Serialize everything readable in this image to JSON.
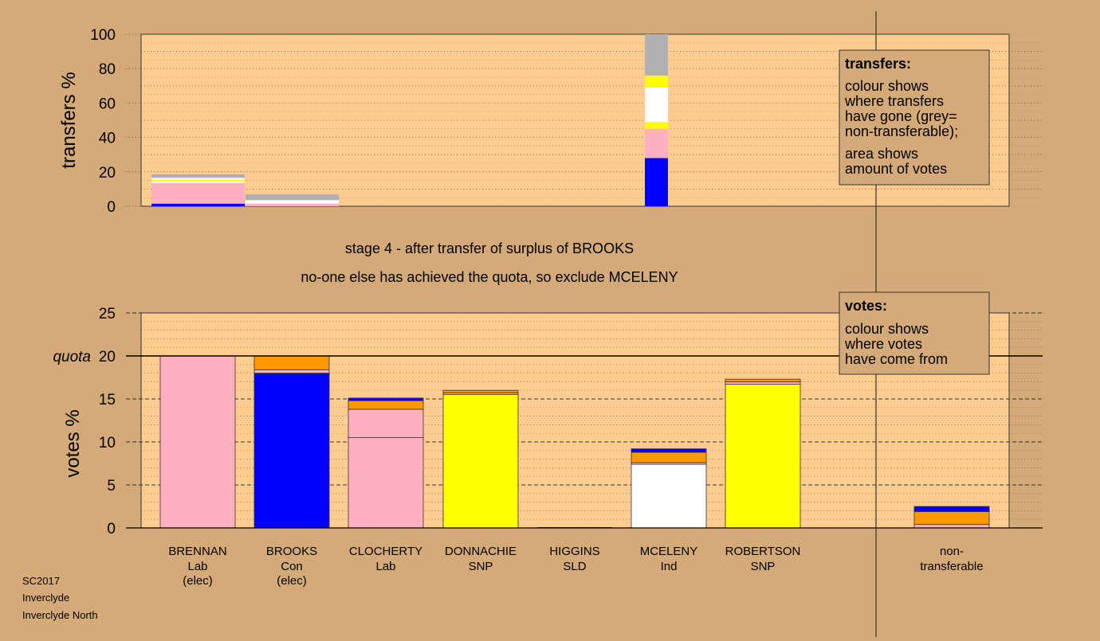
{
  "colors": {
    "page_bg": "#d4aa78",
    "plot_bg": "#ffcc90",
    "Lab": "#ffb0c0",
    "Con": "#0000ff",
    "SNP": "#ffff00",
    "Ind": "#ffffff",
    "SLD": "#ff9900",
    "transfer": "#ff9900",
    "nontransferable": "#b0b0b0"
  },
  "legend_transfers": {
    "title": "transfers:",
    "line1": "colour shows",
    "line2": "where transfers",
    "line3": "have gone (grey=",
    "line4": "non-transferable);",
    "line5": "area shows",
    "line6": "amount of votes"
  },
  "legend_votes": {
    "title": "votes:",
    "line1": "colour shows",
    "line2": "where votes",
    "line3": "have come from"
  },
  "stage_text": {
    "line1": "stage 4 - after transfer of surplus of BROOKS",
    "line2": "no-one else has achieved the quota, so exclude MCELENY"
  },
  "footer": {
    "line1": "SC2017",
    "line2": "Inverclyde",
    "line3": "Inverclyde North"
  },
  "quota_label": "quota",
  "chart_data": [
    {
      "type": "bar",
      "title": "transfers",
      "ylabel": "transfers %",
      "ylim": [
        0,
        100
      ],
      "yticks": [
        0,
        20,
        40,
        60,
        80,
        100
      ],
      "categories": [
        "BRENNAN",
        "BROOKS",
        "CLOCHERTY",
        "DONNACHIE",
        "HIGGINS",
        "MCELENY",
        "ROBERTSON"
      ],
      "bars": [
        {
          "slot": 0,
          "segments": [
            {
              "party": "Con",
              "value": 1.5
            },
            {
              "party": "Lab",
              "value": 12.0
            },
            {
              "party": "Ind",
              "value": 1.0
            },
            {
              "party": "SNP",
              "value": 1.0
            },
            {
              "party": "Ind",
              "value": 1.0
            },
            {
              "party": "nontransferable",
              "value": 2.0
            }
          ]
        },
        {
          "slot": 1,
          "segments": [
            {
              "party": "Lab",
              "value": 1.5
            },
            {
              "party": "Ind",
              "value": 2.0
            },
            {
              "party": "nontransferable",
              "value": 3.5
            }
          ]
        },
        {
          "slot": 5,
          "segments": [
            {
              "party": "Con",
              "value": 28
            },
            {
              "party": "Lab",
              "value": 17
            },
            {
              "party": "SNP",
              "value": 4
            },
            {
              "party": "Ind",
              "value": 20
            },
            {
              "party": "SNP",
              "value": 7
            },
            {
              "party": "nontransferable",
              "value": 24
            }
          ]
        }
      ]
    },
    {
      "type": "bar",
      "title": "votes",
      "ylabel": "votes %",
      "ylim": [
        0,
        25
      ],
      "yticks": [
        0,
        5,
        10,
        15,
        20,
        25
      ],
      "quota": 20,
      "candidates": [
        {
          "name": "BRENNAN",
          "party": "Lab",
          "note": "(elec)",
          "segments": [
            {
              "party": "Lab",
              "value": 20.0
            }
          ]
        },
        {
          "name": "BROOKS",
          "party": "Con",
          "note": "(elec)",
          "segments": [
            {
              "party": "Con",
              "value": 18.0
            },
            {
              "party": "Lab",
              "value": 0.4
            },
            {
              "party": "transfer",
              "value": 1.6
            }
          ]
        },
        {
          "name": "CLOCHERTY",
          "party": "Lab",
          "note": "",
          "segments": [
            {
              "party": "Lab",
              "value": 10.5
            },
            {
              "party": "Lab",
              "value": 3.3
            },
            {
              "party": "transfer",
              "value": 1.0
            },
            {
              "party": "Con",
              "value": 0.3
            }
          ]
        },
        {
          "name": "DONNACHIE",
          "party": "SNP",
          "note": "",
          "segments": [
            {
              "party": "SNP",
              "value": 15.5
            },
            {
              "party": "Lab",
              "value": 0.2
            },
            {
              "party": "transfer",
              "value": 0.3
            }
          ]
        },
        {
          "name": "HIGGINS",
          "party": "SLD",
          "note": "",
          "segments": []
        },
        {
          "name": "MCELENY",
          "party": "Ind",
          "note": "",
          "segments": [
            {
              "party": "Ind",
              "value": 7.4
            },
            {
              "party": "Lab",
              "value": 0.2
            },
            {
              "party": "transfer",
              "value": 1.2
            },
            {
              "party": "Con",
              "value": 0.4
            }
          ]
        },
        {
          "name": "ROBERTSON",
          "party": "SNP",
          "note": "",
          "segments": [
            {
              "party": "SNP",
              "value": 16.7
            },
            {
              "party": "Lab",
              "value": 0.3
            },
            {
              "party": "transfer",
              "value": 0.3
            }
          ]
        },
        {
          "name": "non-",
          "party": "transferable",
          "note": "",
          "segments": [
            {
              "party": "Lab",
              "value": 0.4
            },
            {
              "party": "transfer",
              "value": 1.5
            },
            {
              "party": "Con",
              "value": 0.6
            }
          ]
        }
      ]
    }
  ]
}
